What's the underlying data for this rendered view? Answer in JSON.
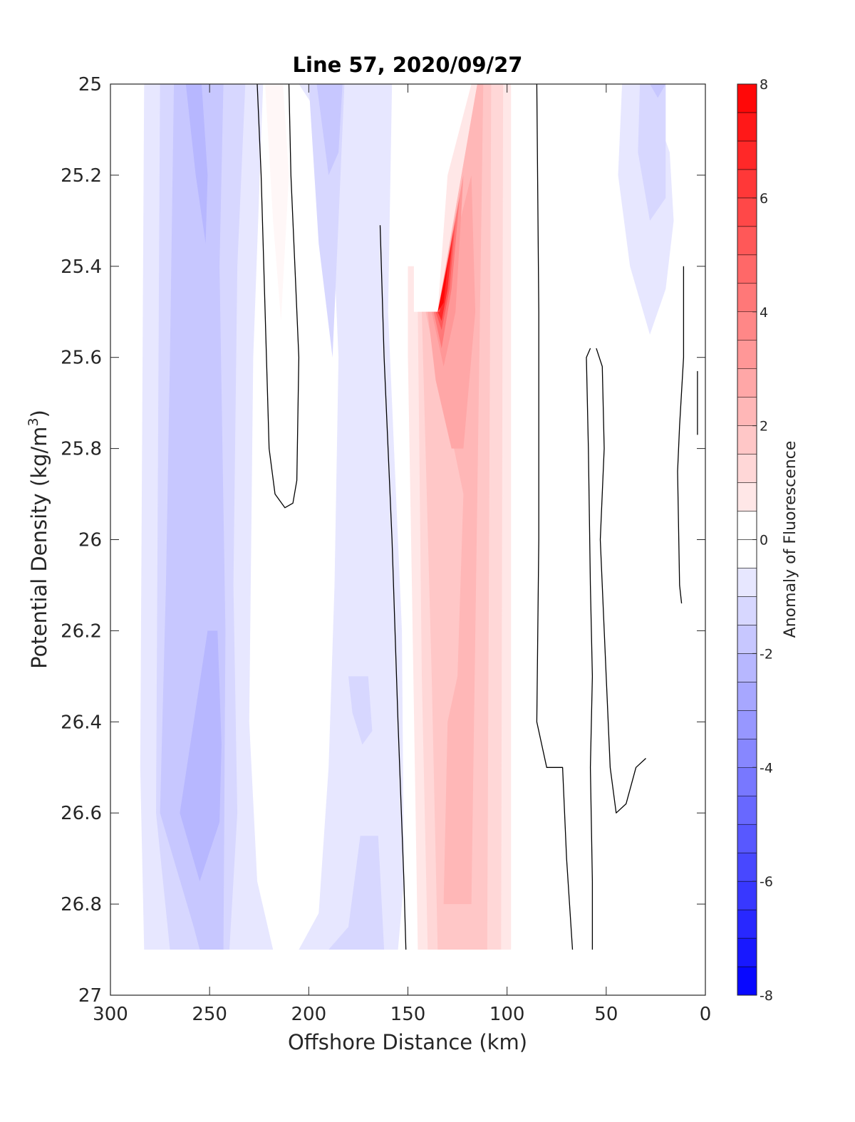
{
  "chart_data": {
    "type": "heatmap",
    "title": "Line 57, 2020/09/27",
    "xlabel": "Offshore Distance (km)",
    "ylabel": "Potential Density (kg/m",
    "ylabel_superscript": "3",
    "ylabel_close": ")",
    "colorbar_label": "Anomaly of Fluorescence",
    "xlim": [
      300,
      0
    ],
    "ylim": [
      25,
      27
    ],
    "x_reversed": true,
    "y_reversed": true,
    "x_tick_values": [
      300,
      250,
      200,
      150,
      100,
      50,
      0
    ],
    "x_tick_labels": [
      "300",
      "250",
      "200",
      "150",
      "100",
      "50",
      "0"
    ],
    "y_tick_values": [
      25,
      25.2,
      25.4,
      25.6,
      25.8,
      26,
      26.2,
      26.4,
      26.6,
      26.8,
      27
    ],
    "y_tick_labels": [
      "25",
      "25.2",
      "25.4",
      "25.6",
      "25.8",
      "26",
      "26.2",
      "26.4",
      "26.6",
      "26.8",
      "27"
    ],
    "clim": [
      -8,
      8
    ],
    "colorbar_step": 0.5,
    "colorbar_tick_values": [
      -8,
      -6,
      -4,
      -2,
      0,
      2,
      4,
      6,
      8
    ],
    "colorbar_tick_labels": [
      "-8",
      "-6",
      "-4",
      "-2",
      "0",
      "2",
      "4",
      "6",
      "8"
    ],
    "colormap": "blue-white-red",
    "color_negative": "#0000ff",
    "color_positive": "#ff0000",
    "zero_contour_color": "#000000",
    "filled_regions": [
      {
        "level": -0.75,
        "polygon": [
          [
            283,
            25
          ],
          [
            223,
            25
          ],
          [
            228,
            25.6
          ],
          [
            230,
            26.4
          ],
          [
            226,
            26.75
          ],
          [
            218,
            26.9
          ],
          [
            283,
            26.9
          ],
          [
            285,
            26.5
          ]
        ]
      },
      {
        "level": -1.25,
        "polygon": [
          [
            275,
            25
          ],
          [
            232,
            25
          ],
          [
            236,
            25.4
          ],
          [
            238,
            26.1
          ],
          [
            236,
            26.6
          ],
          [
            240,
            26.9
          ],
          [
            270,
            26.9
          ],
          [
            277,
            26.6
          ],
          [
            276,
            25.8
          ]
        ]
      },
      {
        "level": -1.75,
        "polygon": [
          [
            268,
            25
          ],
          [
            243,
            25
          ],
          [
            245,
            25.4
          ],
          [
            242,
            26.2
          ],
          [
            243,
            26.9
          ],
          [
            255,
            26.9
          ],
          [
            258,
            26.85
          ],
          [
            275,
            26.6
          ],
          [
            272,
            26.1
          ],
          [
            270,
            25.6
          ]
        ]
      },
      {
        "level": -2.25,
        "polygon": [
          [
            262,
            25
          ],
          [
            254,
            25
          ],
          [
            251,
            25.2
          ],
          [
            252,
            25.35
          ],
          [
            257,
            25.2
          ]
        ]
      },
      {
        "level": -2.25,
        "polygon": [
          [
            251,
            26.2
          ],
          [
            246,
            26.2
          ],
          [
            244,
            26.45
          ],
          [
            245,
            26.62
          ],
          [
            255,
            26.75
          ],
          [
            265,
            26.6
          ]
        ]
      },
      {
        "level": -0.75,
        "polygon": [
          [
            205,
            25
          ],
          [
            158,
            25
          ],
          [
            160,
            25.5
          ],
          [
            153,
            26.2
          ],
          [
            152,
            26.75
          ],
          [
            155,
            26.9
          ],
          [
            205,
            26.9
          ],
          [
            195,
            26.82
          ],
          [
            190,
            26.5
          ],
          [
            187,
            26.1
          ],
          [
            185,
            25.6
          ],
          [
            190,
            25.1
          ]
        ]
      },
      {
        "level": -0.75,
        "polygon": [
          [
            30,
            25
          ],
          [
            42,
            25
          ],
          [
            44,
            25.2
          ],
          [
            38,
            25.4
          ],
          [
            28,
            25.55
          ],
          [
            20,
            25.45
          ],
          [
            16,
            25.3
          ],
          [
            18,
            25.15
          ]
        ]
      },
      {
        "level": -1.25,
        "polygon": [
          [
            200,
            25
          ],
          [
            182,
            25
          ],
          [
            185,
            25.3
          ],
          [
            188,
            25.6
          ],
          [
            195,
            25.35
          ]
        ]
      },
      {
        "level": -1.25,
        "polygon": [
          [
            180,
            26.3
          ],
          [
            170,
            26.3
          ],
          [
            168,
            26.42
          ],
          [
            173,
            26.45
          ],
          [
            178,
            26.38
          ]
        ]
      },
      {
        "level": -1.25,
        "polygon": [
          [
            174,
            26.65
          ],
          [
            165,
            26.65
          ],
          [
            162,
            26.9
          ],
          [
            190,
            26.9
          ],
          [
            180,
            26.85
          ]
        ]
      },
      {
        "level": -1.25,
        "polygon": [
          [
            33,
            25
          ],
          [
            20,
            25
          ],
          [
            20,
            25.25
          ],
          [
            28,
            25.3
          ],
          [
            34,
            25.15
          ]
        ]
      },
      {
        "level": -1.75,
        "polygon": [
          [
            196,
            25
          ],
          [
            183,
            25
          ],
          [
            185,
            25.15
          ],
          [
            190,
            25.2
          ]
        ]
      },
      {
        "level": -1.75,
        "polygon": [
          [
            28,
            25
          ],
          [
            20,
            25
          ],
          [
            24,
            25.03
          ]
        ]
      },
      {
        "level": 0.25,
        "polygon": [
          [
            222,
            25
          ],
          [
            213,
            25
          ],
          [
            210,
            25.2
          ],
          [
            214,
            25.52
          ],
          [
            218,
            25.3
          ]
        ]
      },
      {
        "level": 0.75,
        "polygon": [
          [
            150,
            25.4
          ],
          [
            147,
            25.4
          ],
          [
            147,
            25.5
          ],
          [
            135,
            25.5
          ],
          [
            130,
            25.2
          ],
          [
            118,
            25
          ],
          [
            98,
            25
          ],
          [
            98,
            26.9
          ],
          [
            145,
            26.9
          ],
          [
            148,
            26.1
          ],
          [
            150,
            25.6
          ]
        ]
      },
      {
        "level": 1.25,
        "polygon": [
          [
            145,
            25.5
          ],
          [
            135,
            25.5
          ],
          [
            115,
            25
          ],
          [
            102,
            25
          ],
          [
            103,
            26.9
          ],
          [
            140,
            26.9
          ],
          [
            143,
            26.3
          ]
        ]
      },
      {
        "level": 1.75,
        "polygon": [
          [
            143,
            25.5
          ],
          [
            135,
            25.5
          ],
          [
            115,
            25
          ],
          [
            108,
            25
          ],
          [
            110,
            26.9
          ],
          [
            135,
            26.9
          ],
          [
            138,
            26.3
          ]
        ]
      },
      {
        "level": 2.25,
        "polygon": [
          [
            141,
            25.5
          ],
          [
            135,
            25.5
          ],
          [
            115,
            25
          ],
          [
            112,
            25
          ],
          [
            118,
            26.8
          ],
          [
            132,
            26.8
          ],
          [
            130,
            26.4
          ],
          [
            125,
            26.3
          ],
          [
            122,
            25.9
          ]
        ]
      },
      {
        "level": 2.75,
        "polygon": [
          [
            140,
            25.5
          ],
          [
            135,
            25.5
          ],
          [
            118,
            25.2
          ],
          [
            116,
            25.5
          ],
          [
            122,
            25.8
          ],
          [
            128,
            25.8
          ],
          [
            136,
            25.65
          ]
        ]
      },
      {
        "level": 3.25,
        "polygon": [
          [
            138,
            25.5
          ],
          [
            135,
            25.5
          ],
          [
            122,
            25.2
          ],
          [
            126,
            25.5
          ],
          [
            132,
            25.62
          ]
        ]
      },
      {
        "level": 4.25,
        "polygon": [
          [
            137,
            25.5
          ],
          [
            135,
            25.5
          ],
          [
            124,
            25.25
          ],
          [
            128,
            25.45
          ],
          [
            133,
            25.58
          ]
        ]
      },
      {
        "level": 5.25,
        "polygon": [
          [
            136,
            25.5
          ],
          [
            135,
            25.5
          ],
          [
            126,
            25.3
          ],
          [
            129,
            25.45
          ],
          [
            133,
            25.54
          ]
        ]
      },
      {
        "level": 6.75,
        "polygon": [
          [
            135,
            25.5
          ],
          [
            134,
            25.5
          ],
          [
            127,
            25.32
          ],
          [
            130,
            25.45
          ],
          [
            133,
            25.52
          ]
        ]
      },
      {
        "level": 7.75,
        "polygon": [
          [
            135,
            25.5
          ],
          [
            132,
            25.48
          ],
          [
            130,
            25.4
          ],
          [
            128,
            25.35
          ]
        ]
      }
    ],
    "zero_contours": [
      {
        "points": [
          [
            226,
            25
          ],
          [
            224,
            25.2
          ],
          [
            222,
            25.5
          ],
          [
            220,
            25.8
          ],
          [
            217,
            25.9
          ],
          [
            212,
            25.93
          ],
          [
            208,
            25.92
          ],
          [
            206,
            25.87
          ],
          [
            205,
            25.6
          ],
          [
            207,
            25.4
          ],
          [
            209,
            25.2
          ],
          [
            210,
            25
          ]
        ]
      },
      {
        "points": [
          [
            164,
            25.31
          ],
          [
            162,
            25.6
          ],
          [
            158,
            26.0
          ],
          [
            155,
            26.4
          ],
          [
            152,
            26.75
          ],
          [
            151,
            26.9
          ]
        ]
      },
      {
        "points": [
          [
            85,
            25
          ],
          [
            84,
            25.5
          ],
          [
            84,
            26.0
          ],
          [
            85,
            26.4
          ],
          [
            80,
            26.5
          ],
          [
            72,
            26.5
          ],
          [
            70,
            26.7
          ],
          [
            67,
            26.9
          ]
        ]
      },
      {
        "points": [
          [
            58,
            25.58
          ],
          [
            60,
            25.6
          ],
          [
            59,
            25.8
          ],
          [
            58,
            26.1
          ],
          [
            57,
            26.3
          ],
          [
            58,
            26.5
          ],
          [
            57,
            26.75
          ],
          [
            57,
            26.9
          ]
        ]
      },
      {
        "points": [
          [
            55,
            25.58
          ],
          [
            52,
            25.62
          ],
          [
            51,
            25.8
          ],
          [
            53,
            26.0
          ],
          [
            50,
            26.3
          ],
          [
            48,
            26.5
          ],
          [
            45,
            26.6
          ],
          [
            40,
            26.58
          ],
          [
            35,
            26.5
          ],
          [
            30,
            26.48
          ]
        ]
      },
      {
        "points": [
          [
            11,
            25.4
          ],
          [
            11,
            25.6
          ],
          [
            13,
            25.75
          ],
          [
            14,
            25.85
          ],
          [
            13,
            26.1
          ],
          [
            12,
            26.14
          ]
        ]
      },
      {
        "points": [
          [
            4,
            25.63
          ],
          [
            4,
            25.77
          ]
        ]
      }
    ]
  }
}
